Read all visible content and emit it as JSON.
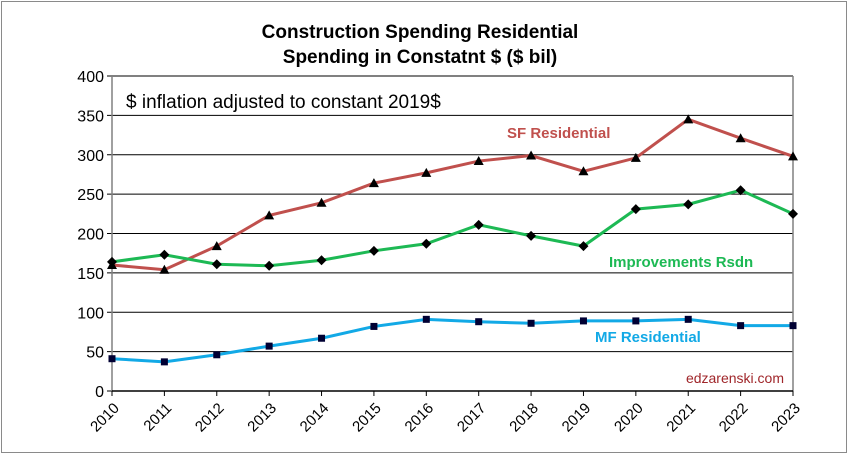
{
  "chart_data": {
    "type": "line",
    "title": "Construction Spending Residential",
    "subtitle": "Spending in Constatnt $ ($ bil)",
    "annotation": "$ inflation adjusted to constant 2019$",
    "watermark": "edzarenski.com",
    "xlabel": "",
    "ylabel": "",
    "ylim": [
      0,
      400
    ],
    "yticks": [
      0,
      50,
      100,
      150,
      200,
      250,
      300,
      350,
      400
    ],
    "grid": true,
    "x": [
      "2010",
      "2011",
      "2012",
      "2013",
      "2014",
      "2015",
      "2016",
      "2017",
      "2018",
      "2019",
      "2020",
      "2021",
      "2022",
      "2023"
    ],
    "series": [
      {
        "name": "SF Residential",
        "color": "#c0504d",
        "marker": "triangle",
        "values": [
          160,
          154,
          184,
          223,
          239,
          264,
          277,
          292,
          299,
          279,
          296,
          345,
          321,
          298
        ]
      },
      {
        "name": "Improvements Rsdn",
        "color": "#1db954",
        "marker": "diamond",
        "values": [
          164,
          173,
          161,
          159,
          166,
          178,
          187,
          211,
          197,
          184,
          231,
          237,
          255,
          225
        ]
      },
      {
        "name": "MF Residential",
        "color": "#12a9e6",
        "marker": "square",
        "values": [
          41,
          37,
          46,
          57,
          67,
          82,
          91,
          88,
          86,
          89,
          89,
          91,
          83,
          83
        ]
      }
    ]
  }
}
